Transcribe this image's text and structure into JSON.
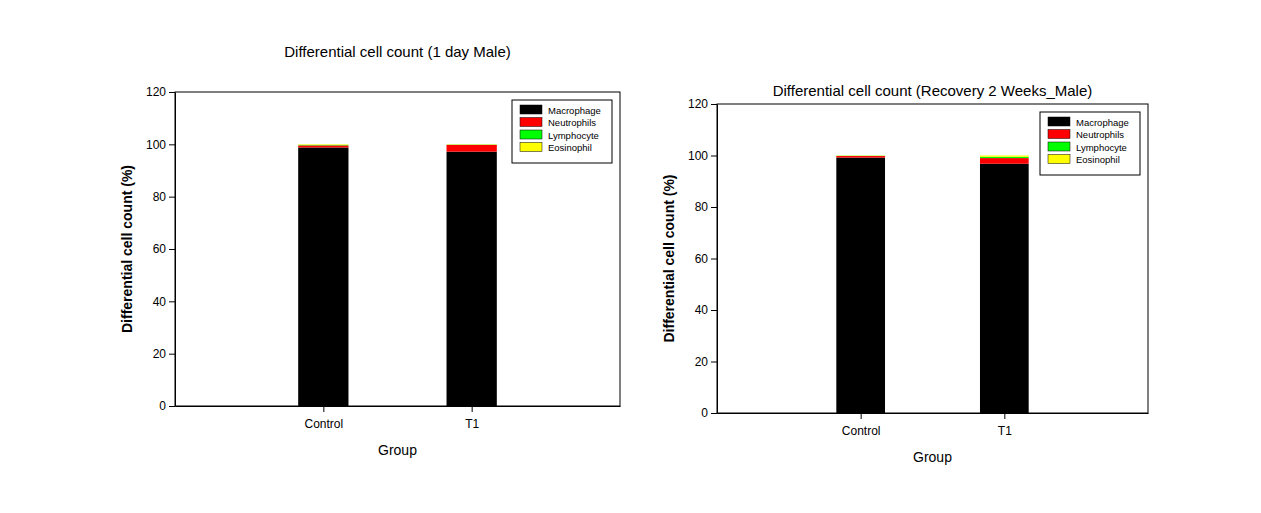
{
  "chart_data": [
    {
      "type": "bar",
      "title": "Differential cell count (1 day Male)",
      "x_label": "Group",
      "y_label": "Differential cell count (%)",
      "categories": [
        "Control",
        "T1"
      ],
      "stacked": true,
      "legend": "upper right",
      "ylim": [
        0,
        120
      ],
      "yticks": [
        0,
        20,
        40,
        60,
        80,
        100,
        120
      ],
      "series": [
        {
          "name": "Macrophage",
          "color": "#000000",
          "values": [
            98.8,
            97.2
          ]
        },
        {
          "name": "Neutrophils",
          "color": "#ff0000",
          "values": [
            0.8,
            2.6
          ]
        },
        {
          "name": "Lymphocyte",
          "color": "#00ff00",
          "values": [
            0.2,
            0.1
          ]
        },
        {
          "name": "Eosinophil",
          "color": "#ffff00",
          "values": [
            0.2,
            0.1
          ]
        }
      ]
    },
    {
      "type": "bar",
      "title": "Differential cell count (Recovery 2 Weeks_Male)",
      "x_label": "Group",
      "y_label": "Differential cell count (%)",
      "categories": [
        "Control",
        "T1"
      ],
      "stacked": true,
      "legend": "upper right",
      "ylim": [
        0,
        120
      ],
      "yticks": [
        0,
        20,
        40,
        60,
        80,
        100,
        120
      ],
      "series": [
        {
          "name": "Macrophage",
          "color": "#000000",
          "values": [
            99.2,
            96.8
          ]
        },
        {
          "name": "Neutrophils",
          "color": "#ff0000",
          "values": [
            0.6,
            2.2
          ]
        },
        {
          "name": "Lymphocyte",
          "color": "#00ff00",
          "values": [
            0.1,
            0.5
          ]
        },
        {
          "name": "Eosinophil",
          "color": "#ffff00",
          "values": [
            0.1,
            0.5
          ]
        }
      ]
    }
  ]
}
